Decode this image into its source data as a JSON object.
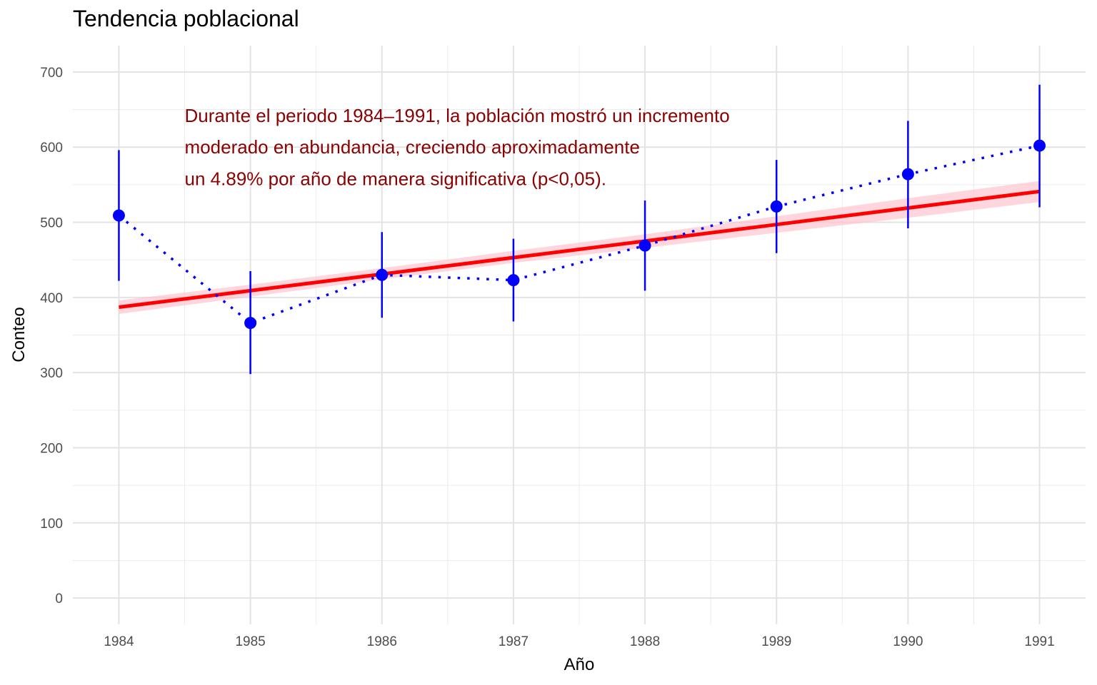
{
  "chart_data": {
    "type": "line",
    "title": "Tendencia poblacional",
    "xlabel": "Año",
    "ylabel": "Conteo",
    "x": [
      1984,
      1985,
      1986,
      1987,
      1988,
      1989,
      1990,
      1991
    ],
    "xticks": [
      1984,
      1985,
      1986,
      1987,
      1988,
      1989,
      1990,
      1991
    ],
    "xlim": [
      1983.65,
      1991.35
    ],
    "yticks": [
      0,
      100,
      200,
      300,
      400,
      500,
      600,
      700
    ],
    "ylim": [
      -35,
      735
    ],
    "grid": true,
    "legend": "none",
    "series": [
      {
        "kind": "observed",
        "style": "points with dotted line and error bars",
        "color": "#0000ff",
        "values": [
          509,
          366,
          430,
          423,
          469,
          521,
          564,
          602
        ],
        "lower": [
          422,
          298,
          373,
          368,
          409,
          459,
          492,
          520
        ],
        "upper": [
          596,
          435,
          487,
          478,
          529,
          583,
          635,
          683
        ]
      },
      {
        "kind": "trend",
        "style": "solid line with confidence band",
        "color": "#ff0000",
        "band_color": "#ffc0cb",
        "values": [
          387,
          409,
          431,
          453,
          475,
          497,
          519,
          541
        ],
        "band_lower": [
          378,
          401,
          424,
          446,
          466,
          486,
          506,
          527
        ],
        "band_upper": [
          396,
          417,
          439,
          462,
          484,
          508,
          532,
          555
        ]
      }
    ],
    "annotation": {
      "lines": [
        "Durante el periodo 1984–1991, la población mostró un incremento",
        "moderado en abundancia, creciendo aproximadamente",
        "un 4.89% por año de manera significativa (p<0,05)."
      ],
      "color": "#8b0000",
      "anchor_x": 1984.5,
      "anchor_y": [
        642,
        600,
        558
      ]
    }
  }
}
